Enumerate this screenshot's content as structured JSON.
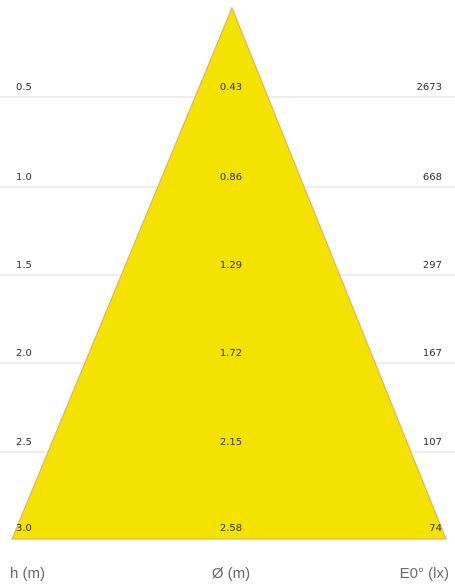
{
  "diagram": {
    "columns": {
      "height": "h (m)",
      "diameter": "Ø (m)",
      "illuminance": "E0° (lx)"
    },
    "rows": [
      {
        "h": "0.5",
        "d": "0.43",
        "e": "2673"
      },
      {
        "h": "1.0",
        "d": "0.86",
        "e": "668"
      },
      {
        "h": "1.5",
        "d": "1.29",
        "e": "297"
      },
      {
        "h": "2.0",
        "d": "1.72",
        "e": "167"
      },
      {
        "h": "2.5",
        "d": "2.15",
        "e": "107"
      },
      {
        "h": "3.0",
        "d": "2.58",
        "e": "74"
      }
    ],
    "colors": {
      "cone_fill": "#f4e200",
      "cone_edge": "#e7b15a",
      "grid": "#dcdcdc",
      "text": "#333333",
      "axis_text": "#6a6a6a"
    }
  }
}
